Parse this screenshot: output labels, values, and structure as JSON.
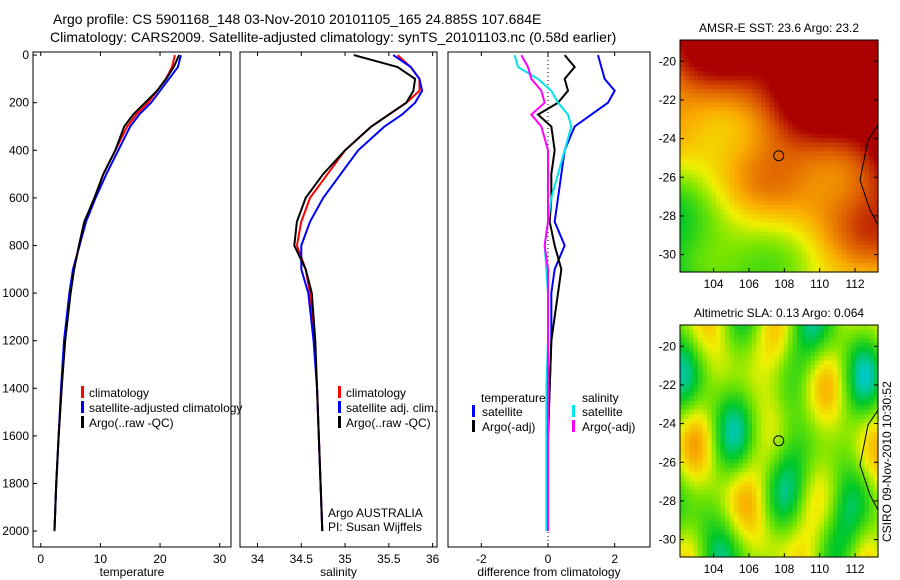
{
  "title_line1": "Argo profile: CS 5901168_148 03-Nov-2010 20101105_165 24.885S 107.684E",
  "title_line2": "Climatology: CARS2009. Satellite-adjusted climatology: synTS_20101103.nc (0.58d earlier)",
  "side_label": "CSIRO 09-Nov-2010 10:30:52",
  "chart_data": [
    {
      "type": "line",
      "id": "temperature",
      "xlabel": "temperature",
      "ylabel": "",
      "xlim": [
        -1.3,
        31.9
      ],
      "ylim": [
        2067,
        -13
      ],
      "xticks": [
        "0",
        "10",
        "20",
        "30"
      ],
      "xtick_values": [
        0,
        10,
        20,
        30
      ],
      "yticks": [
        "0",
        "200",
        "400",
        "600",
        "800",
        "1000",
        "1200",
        "1400",
        "1600",
        "1800",
        "2000"
      ],
      "ytick_values": [
        0,
        200,
        400,
        600,
        800,
        1000,
        1200,
        1400,
        1600,
        1800,
        2000
      ],
      "depth": [
        0,
        50,
        100,
        150,
        200,
        250,
        300,
        400,
        500,
        600,
        700,
        800,
        900,
        1000,
        1200,
        1400,
        1600,
        1800,
        2000
      ],
      "series": [
        {
          "name": "climatology",
          "color": "#ff0000",
          "values": [
            22.5,
            22,
            21,
            19.5,
            18,
            16,
            14.5,
            12.5,
            10.5,
            9,
            7.5,
            6.5,
            5.5,
            5,
            4,
            3.5,
            3,
            2.6,
            2.3
          ]
        },
        {
          "name": "satellite-adjusted climatology",
          "color": "#0000ff",
          "values": [
            23.5,
            23,
            21.5,
            20,
            18.5,
            16.5,
            15,
            13,
            11,
            9.2,
            7.6,
            6.5,
            5.4,
            4.8,
            3.9,
            3.4,
            3,
            2.6,
            2.3
          ]
        },
        {
          "name": "Argo(..raw -QC)",
          "color": "#000000",
          "values": [
            23.2,
            22.3,
            21,
            19.5,
            17.5,
            15.5,
            14,
            12.5,
            10.5,
            9,
            7.3,
            6.4,
            5.6,
            5,
            4.1,
            3.5,
            3,
            2.6,
            2.3
          ]
        }
      ],
      "legend": [
        "climatology",
        "satellite-adjusted climatology",
        "Argo(..raw -QC)"
      ]
    },
    {
      "type": "line",
      "id": "salinity",
      "xlabel": "salinity",
      "xlim": [
        33.8,
        36.05
      ],
      "ylim": [
        2067,
        -13
      ],
      "xticks": [
        "34",
        "34.5",
        "35",
        "35.5",
        "36"
      ],
      "xtick_values": [
        34,
        34.5,
        35,
        35.5,
        36
      ],
      "depth": [
        0,
        50,
        100,
        150,
        200,
        250,
        300,
        400,
        500,
        600,
        700,
        800,
        900,
        1000,
        1200,
        1400,
        1600,
        1800,
        2000
      ],
      "series": [
        {
          "name": "climatology",
          "color": "#ff0000",
          "values": [
            35.6,
            35.75,
            35.85,
            35.85,
            35.7,
            35.5,
            35.3,
            35.0,
            34.8,
            34.6,
            34.5,
            34.45,
            34.55,
            34.6,
            34.65,
            34.68,
            34.7,
            34.72,
            34.74
          ]
        },
        {
          "name": "satellite adj. clim.",
          "color": "#0000ff",
          "values": [
            35.55,
            35.75,
            35.85,
            35.88,
            35.8,
            35.65,
            35.45,
            35.15,
            34.95,
            34.75,
            34.6,
            34.5,
            34.5,
            34.58,
            34.64,
            34.68,
            34.7,
            34.72,
            34.74
          ]
        },
        {
          "name": "Argo(..raw -QC)",
          "color": "#000000",
          "values": [
            35.1,
            35.6,
            35.8,
            35.78,
            35.7,
            35.5,
            35.3,
            35.0,
            34.75,
            34.55,
            34.45,
            34.42,
            34.55,
            34.62,
            34.66,
            34.68,
            34.7,
            34.72,
            34.74
          ]
        }
      ],
      "legend": [
        "climatology",
        "satellite adj. clim.",
        "Argo(..raw -QC)"
      ],
      "annotation": [
        "Argo AUSTRALIA",
        "PI: Susan Wijffels"
      ]
    },
    {
      "type": "line",
      "id": "difference",
      "xlabel": "difference from climatology",
      "xlim": [
        -3,
        3.06
      ],
      "ylim": [
        2067,
        -13
      ],
      "xticks": [
        "-2",
        "0",
        "2"
      ],
      "xtick_values": [
        -2,
        0,
        2
      ],
      "depth": [
        0,
        50,
        100,
        150,
        200,
        250,
        300,
        400,
        500,
        600,
        700,
        800,
        900,
        1000,
        1200,
        1400,
        1600,
        1800,
        2000
      ],
      "series": [
        {
          "name": "temperature satellite",
          "color": "#0000ff",
          "values": [
            1.5,
            1.6,
            1.7,
            2.0,
            1.8,
            1.3,
            0.8,
            0.5,
            0.4,
            0.3,
            0.2,
            0.5,
            0.2,
            0.1,
            0.1,
            0.05,
            0,
            0,
            0
          ]
        },
        {
          "name": "temperature Argo(-adj)",
          "color": "#000000",
          "values": [
            0.5,
            0.8,
            0.5,
            0.6,
            0.3,
            -0.3,
            0.1,
            0.2,
            0.1,
            0.1,
            0.05,
            0.2,
            0.4,
            0.3,
            0.1,
            0.05,
            0,
            0,
            0
          ]
        },
        {
          "name": "salinity satellite",
          "color": "#00e5ee",
          "values": [
            -1,
            -0.9,
            -0.3,
            0.1,
            0.3,
            0.6,
            0.7,
            0.5,
            0.3,
            0.1,
            0,
            -0.1,
            -0.05,
            0,
            0,
            -0.05,
            -0.05,
            -0.05,
            -0.05
          ]
        },
        {
          "name": "salinity Argo(-adj)",
          "color": "#ff00ff",
          "values": [
            -0.8,
            -0.6,
            -0.5,
            -0.2,
            -0.1,
            -0.5,
            -0.2,
            0,
            0,
            0,
            0,
            -0.1,
            0,
            0,
            0,
            0,
            0,
            0,
            0
          ]
        }
      ],
      "legend_headers": [
        "temperature",
        "salinity"
      ],
      "legend": [
        "satellite",
        "Argo(-adj)",
        "satellite",
        "Argo(-adj)"
      ]
    },
    {
      "type": "heatmap",
      "id": "sst-map",
      "title": "AMSR-E SST: 23.6 Argo: 23.2",
      "xlim": [
        102.1,
        113.3
      ],
      "ylim": [
        -30.9,
        -18.9
      ],
      "xticks": [
        "104",
        "106",
        "108",
        "110",
        "112"
      ],
      "xtick_values": [
        104,
        106,
        108,
        110,
        112
      ],
      "yticks": [
        "-20",
        "-22",
        "-24",
        "-26",
        "-28",
        "-30"
      ],
      "ytick_values": [
        -20,
        -22,
        -24,
        -26,
        -28,
        -30
      ],
      "marker": {
        "lon": 107.684,
        "lat": -24.885
      }
    },
    {
      "type": "heatmap",
      "id": "sla-map",
      "title": "Altimetric SLA: 0.13 Argo: 0.064",
      "xlim": [
        102.1,
        113.3
      ],
      "ylim": [
        -30.9,
        -18.9
      ],
      "xticks": [
        "104",
        "106",
        "108",
        "110",
        "112"
      ],
      "xtick_values": [
        104,
        106,
        108,
        110,
        112
      ],
      "yticks": [
        "-20",
        "-22",
        "-24",
        "-26",
        "-28",
        "-30"
      ],
      "ytick_values": [
        -20,
        -22,
        -24,
        -26,
        -28,
        -30
      ],
      "marker": {
        "lon": 107.684,
        "lat": -24.885
      }
    }
  ]
}
